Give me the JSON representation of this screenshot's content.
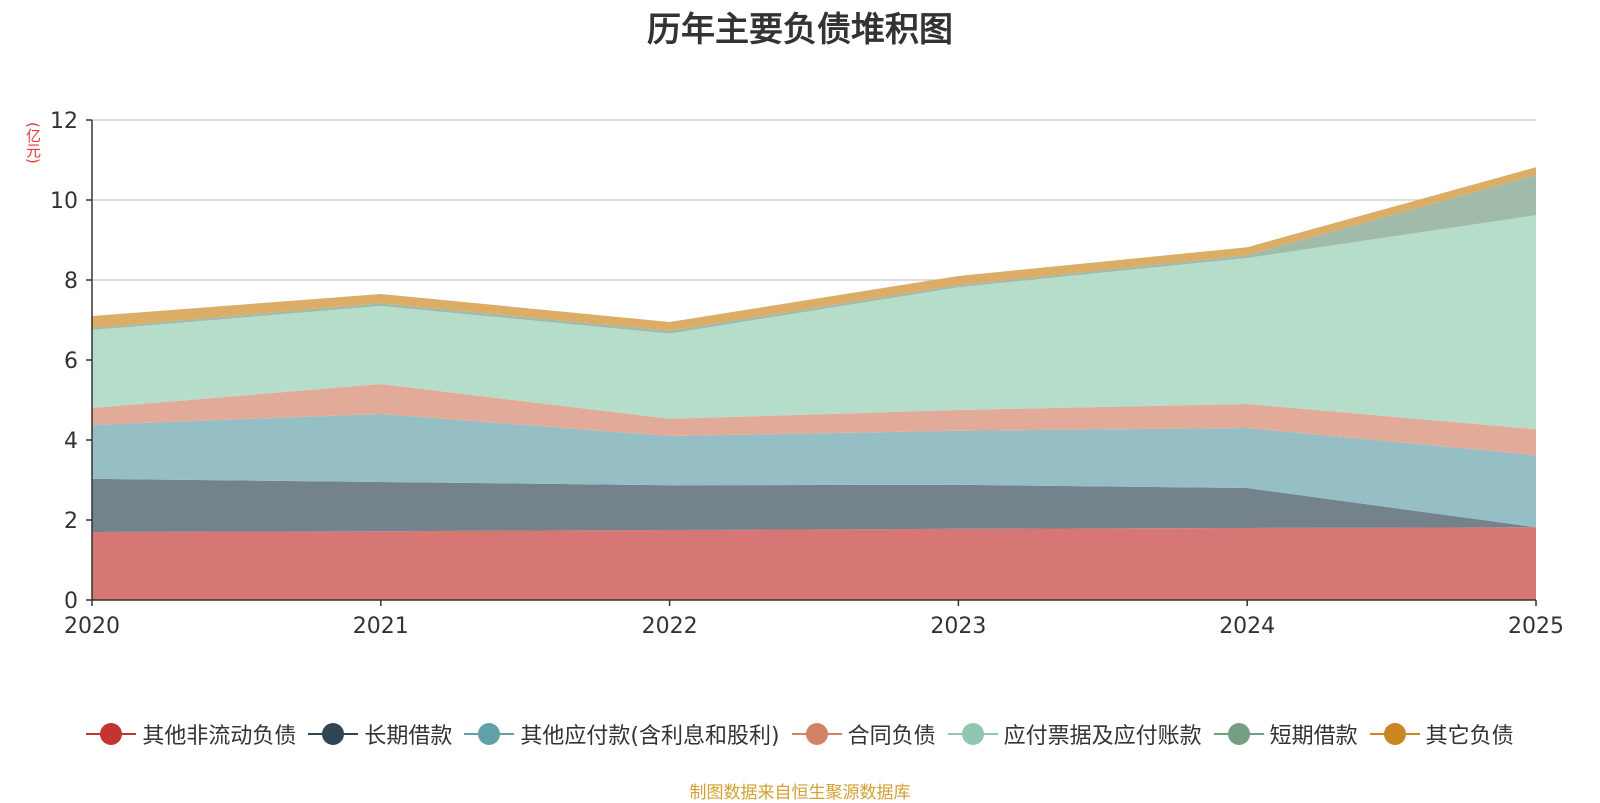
{
  "chart_data": {
    "type": "area",
    "stacked": true,
    "title": "历年主要负债堆积图",
    "unit_label": "(亿元)",
    "xlabel": "",
    "ylabel": "(亿元)",
    "categories": [
      "2020",
      "2021",
      "2022",
      "2023",
      "2024",
      "2025"
    ],
    "ylim": [
      0,
      12
    ],
    "yticks": [
      0,
      2,
      4,
      6,
      8,
      10,
      12
    ],
    "grid": true,
    "legend_position": "bottom",
    "series": [
      {
        "name": "其他非流动负债",
        "color": "#c23531",
        "fill": "#d4706e",
        "values": [
          1.7,
          1.72,
          1.75,
          1.78,
          1.8,
          1.82
        ]
      },
      {
        "name": "长期借款",
        "color": "#2f4554",
        "fill": "#6d7b86",
        "values": [
          1.33,
          1.23,
          1.12,
          1.1,
          1.0,
          0.0
        ]
      },
      {
        "name": "其他应付款(含利息和股利)",
        "color": "#61a0a8",
        "fill": "#8fbcc2",
        "values": [
          1.35,
          1.7,
          1.23,
          1.35,
          1.5,
          1.8
        ]
      },
      {
        "name": "合同负债",
        "color": "#d48265",
        "fill": "#e0a693",
        "values": [
          0.42,
          0.75,
          0.43,
          0.52,
          0.6,
          0.65
        ]
      },
      {
        "name": "应付票据及应付账款",
        "color": "#91c7ae",
        "fill": "#b2dac7",
        "values": [
          1.95,
          1.95,
          2.13,
          3.07,
          3.65,
          5.35
        ]
      },
      {
        "name": "短期借款",
        "color": "#749f83",
        "fill": "#9bb7a4",
        "values": [
          0.05,
          0.07,
          0.07,
          0.05,
          0.07,
          1.0
        ]
      },
      {
        "name": "其它负债",
        "color": "#ca8622",
        "fill": "#daa95f",
        "values": [
          0.3,
          0.23,
          0.22,
          0.23,
          0.2,
          0.2
        ]
      }
    ]
  },
  "source_note": "制图数据来自恒生聚源数据库"
}
